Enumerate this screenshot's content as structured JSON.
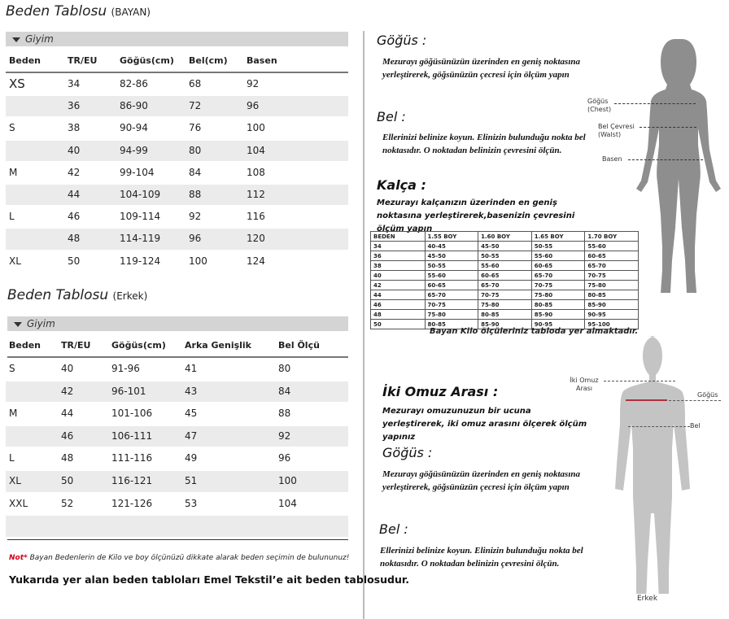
{
  "women": {
    "title": "Beden Tablosu",
    "subtitle": "(BAYAN)",
    "section": "Giyim",
    "headers": [
      "Beden",
      "TR/EU",
      "Göğüs(cm)",
      "Bel(cm)",
      "Basen"
    ],
    "rows": [
      [
        "XS",
        "34",
        "82-86",
        "68",
        "92"
      ],
      [
        "",
        "36",
        "86-90",
        "72",
        "96"
      ],
      [
        "S",
        "38",
        "90-94",
        "76",
        "100"
      ],
      [
        "",
        "40",
        "94-99",
        "80",
        "104"
      ],
      [
        "M",
        "42",
        "99-104",
        "84",
        "108"
      ],
      [
        "",
        "44",
        "104-109",
        "88",
        "112"
      ],
      [
        "L",
        "46",
        "109-114",
        "92",
        "116"
      ],
      [
        "",
        "48",
        "114-119",
        "96",
        "120"
      ],
      [
        "XL",
        "50",
        "119-124",
        "100",
        "124"
      ]
    ]
  },
  "men": {
    "title": "Beden Tablosu",
    "subtitle": "(Erkek)",
    "section": "Giyim",
    "headers": [
      "Beden",
      "TR/EU",
      "Göğüs(cm)",
      "Arka Genişlik",
      "Bel Ölçü"
    ],
    "rows": [
      [
        "S",
        "40",
        "91-96",
        "41",
        "80"
      ],
      [
        "",
        "42",
        "96-101",
        "43",
        "84"
      ],
      [
        "M",
        "44",
        "101-106",
        "45",
        "88"
      ],
      [
        "",
        "46",
        "106-111",
        "47",
        "92"
      ],
      [
        "L",
        "48",
        "111-116",
        "49",
        "96"
      ],
      [
        "XL",
        "50",
        "116-121",
        "51",
        "100"
      ],
      [
        "XXL",
        "52",
        "121-126",
        "53",
        "104"
      ],
      [
        "",
        "",
        "",
        "",
        ""
      ]
    ]
  },
  "note": {
    "prefix": "Not*",
    "text": "Bayan Bedenlerin de Kilo ve boy ölçünüzü dikkate alarak beden seçimin de bulununuz!",
    "prefix_color": "#d0021b"
  },
  "footer": "Yukarıda yer alan beden tabloları Emel Tekstil’e ait beden tablosudur.",
  "women_guide": {
    "gogus_title": "Göğüs :",
    "gogus_text": "Mezurayı göğüsünüzün üzerinden en geniş noktasına yerleştirerek, göğsünüzün çecresi için ölçüm yapın",
    "bel_title": "Bel :",
    "bel_text": "Ellerinizi belinize koyun. Elinizin bulunduğu nokta bel noktasıdır. O noktadan belinizin çevresini ölçün.",
    "kalca_title": "Kalça :",
    "kalca_text": "Mezurayı kalçanızın üzerinden en geniş noktasına yerleştirerek,basenizin çevresini ölçüm yapın",
    "figure_labels": {
      "chest": "Göğüs",
      "chest_en": "(Chest)",
      "waist": "Bel Çevresi",
      "waist_en": "(Walst)",
      "hip": "Basen"
    }
  },
  "weight_table": {
    "headers": [
      "BEDEN",
      "1.55 BOY",
      "1.60 BOY",
      "1.65 BOY",
      "1.70 BOY"
    ],
    "rows": [
      [
        "34",
        "40-45",
        "45-50",
        "50-55",
        "55-60"
      ],
      [
        "36",
        "45-50",
        "50-55",
        "55-60",
        "60-65"
      ],
      [
        "38",
        "50-55",
        "55-60",
        "60-65",
        "65-70"
      ],
      [
        "40",
        "55-60",
        "60-65",
        "65-70",
        "70-75"
      ],
      [
        "42",
        "60-65",
        "65-70",
        "70-75",
        "75-80"
      ],
      [
        "44",
        "65-70",
        "70-75",
        "75-80",
        "80-85"
      ],
      [
        "46",
        "70-75",
        "75-80",
        "80-85",
        "85-90"
      ],
      [
        "48",
        "75-80",
        "80-85",
        "85-90",
        "90-95"
      ],
      [
        "50",
        "80-85",
        "85-90",
        "90-95",
        "95-100"
      ]
    ],
    "caption": "Bayan Kilo ölçüleriniz tabloda yer almaktadır."
  },
  "men_guide": {
    "omuz_title": "İki Omuz Arası :",
    "omuz_text": "Mezurayı omuzunuzun bir ucuna yerleştirerek, iki omuz arasını ölçerek ölçüm yapınız",
    "gogus_title": "Göğüs :",
    "gogus_text": "Mezurayı göğüsünüzün üzerinden en geniş noktasına yerleştirerek, göğsünüzün çecresi için ölçüm yapın",
    "bel_title": "Bel :",
    "bel_text": "Ellerinizi belinize koyun. Elinizin bulunduğu nokta bel noktasıdır. O noktadan belinizin çevresini ölçün.",
    "figure_labels": {
      "omuz1": "İki Omuz",
      "omuz2": "Arası",
      "chest": "Göğüs",
      "waist": "Bel",
      "caption": "Erkek"
    }
  }
}
